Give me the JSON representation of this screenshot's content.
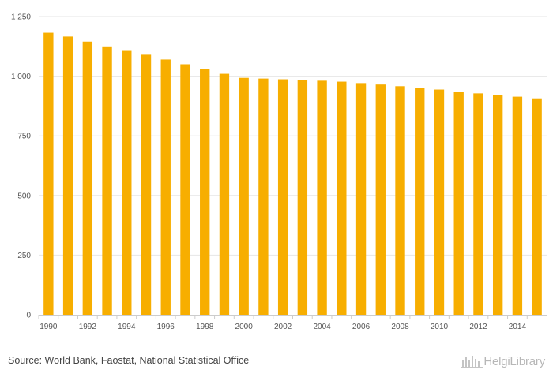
{
  "chart_data": {
    "type": "bar",
    "categories": [
      "1990",
      "1991",
      "1992",
      "1993",
      "1994",
      "1995",
      "1996",
      "1997",
      "1998",
      "1999",
      "2000",
      "2001",
      "2002",
      "2003",
      "2004",
      "2005",
      "2006",
      "2007",
      "2008",
      "2009",
      "2010",
      "2011",
      "2012",
      "2013",
      "2014",
      "2015"
    ],
    "values": [
      1182,
      1166,
      1145,
      1125,
      1106,
      1090,
      1070,
      1050,
      1030,
      1010,
      993,
      990,
      987,
      984,
      981,
      977,
      971,
      965,
      958,
      951,
      944,
      935,
      928,
      921,
      914,
      907
    ],
    "x_tick_labels": [
      "1990",
      "1992",
      "1994",
      "1996",
      "1998",
      "2000",
      "2002",
      "2004",
      "2006",
      "2008",
      "2010",
      "2012",
      "2014"
    ],
    "y_ticks": [
      0,
      250,
      500,
      750,
      1000,
      1250
    ],
    "y_tick_labels": [
      "0",
      "250",
      "500",
      "750",
      "1 000",
      "1 250"
    ],
    "ylim": [
      0,
      1250
    ],
    "title": "",
    "xlabel": "",
    "ylabel": "",
    "grid": true,
    "bar_color": "#f7ae00",
    "grid_color": "#e6e6e6",
    "axis_color": "#cccccc"
  },
  "footer": {
    "source": "Source: World Bank, Faostat, National Statistical Office",
    "logo_text": "HelgiLibrary"
  }
}
